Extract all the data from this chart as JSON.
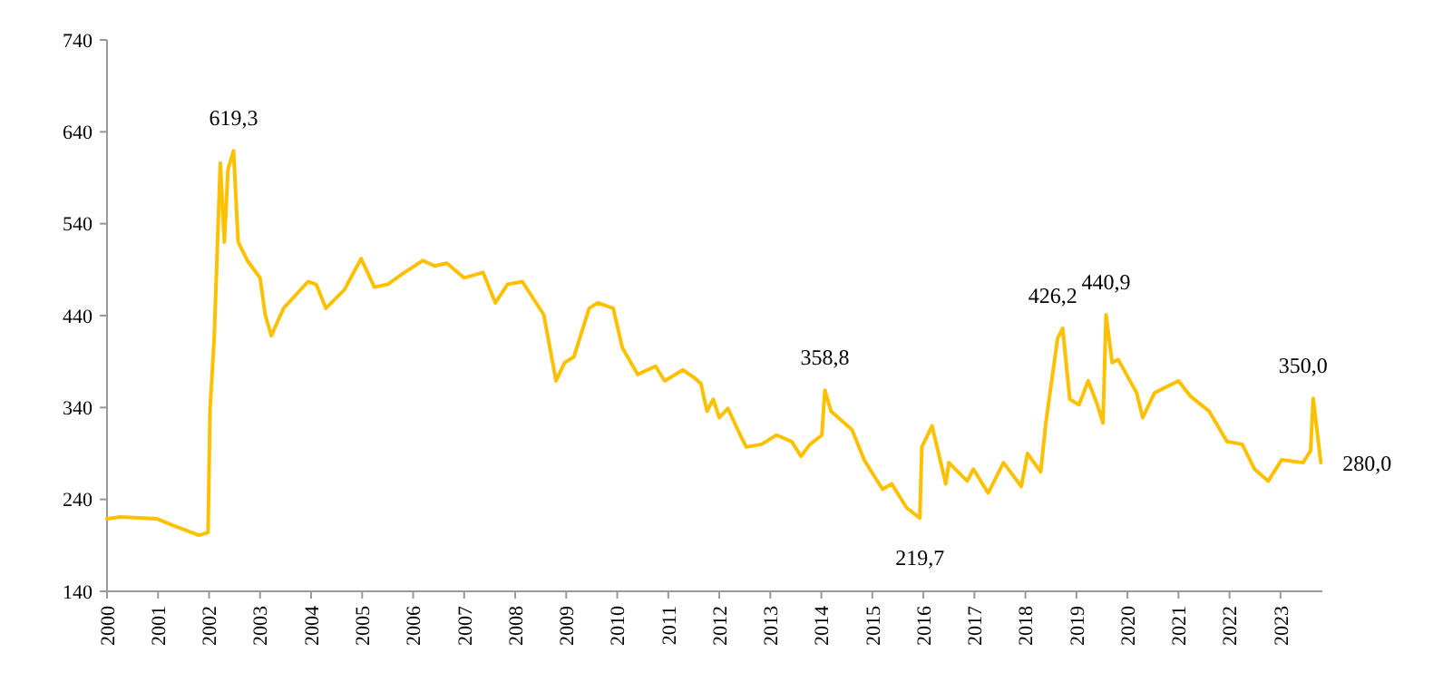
{
  "chart_data": {
    "type": "line",
    "x": [
      2000.0,
      2000.26,
      2000.97,
      2001.33,
      2001.8,
      2001.98,
      2002.02,
      2002.1,
      2002.22,
      2002.3,
      2002.37,
      2002.48,
      2002.57,
      2002.75,
      2003.0,
      2003.1,
      2003.22,
      2003.46,
      2003.94,
      2004.1,
      2004.29,
      2004.65,
      2004.98,
      2005.24,
      2005.5,
      2005.83,
      2006.19,
      2006.42,
      2006.66,
      2007.0,
      2007.37,
      2007.61,
      2007.85,
      2008.14,
      2008.56,
      2008.8,
      2008.97,
      2009.15,
      2009.45,
      2009.62,
      2009.92,
      2010.1,
      2010.4,
      2010.75,
      2010.93,
      2011.29,
      2011.52,
      2011.64,
      2011.76,
      2011.88,
      2012.0,
      2012.17,
      2012.41,
      2012.53,
      2012.83,
      2013.12,
      2013.42,
      2013.6,
      2013.78,
      2014.01,
      2014.07,
      2014.19,
      2014.6,
      2014.84,
      2015.2,
      2015.38,
      2015.67,
      2015.93,
      2015.97,
      2016.17,
      2016.44,
      2016.5,
      2016.86,
      2016.98,
      2017.27,
      2017.57,
      2017.92,
      2018.04,
      2018.3,
      2018.4,
      2018.63,
      2018.73,
      2018.87,
      2019.05,
      2019.23,
      2019.41,
      2019.52,
      2019.58,
      2019.7,
      2019.82,
      2020.18,
      2020.3,
      2020.53,
      2021.0,
      2021.24,
      2021.6,
      2021.95,
      2022.25,
      2022.49,
      2022.76,
      2023.02,
      2023.44,
      2023.59,
      2023.64,
      2023.79
    ],
    "series": [
      {
        "color": "#ffc000",
        "values": [
          219,
          221,
          219,
          211,
          201,
          204,
          339,
          415,
          606,
          520,
          599,
          619.3,
          520,
          500,
          481,
          441,
          418,
          448,
          477,
          474,
          448,
          468,
          502,
          471,
          474,
          487,
          500,
          494,
          497,
          481,
          487,
          454,
          474,
          477,
          441,
          369,
          389,
          395,
          448,
          454,
          448,
          405,
          376,
          385,
          369,
          381,
          372,
          366,
          336,
          349,
          329,
          339,
          310,
          297,
          300,
          310,
          303,
          287,
          300,
          310,
          358.8,
          336,
          316,
          283,
          251,
          257,
          231,
          219.7,
          297,
          320,
          257,
          280,
          260,
          273,
          247,
          280,
          254,
          290,
          270,
          323,
          415,
          426.2,
          349,
          343,
          369,
          343,
          323,
          440.9,
          389,
          392,
          356,
          329,
          356,
          369,
          352,
          336,
          303,
          300,
          273,
          260,
          283,
          280,
          293,
          350.0,
          280.0
        ]
      }
    ],
    "xlim": [
      2000,
      2023.82
    ],
    "xticks": [
      2000,
      2001,
      2002,
      2003,
      2004,
      2005,
      2006,
      2007,
      2008,
      2009,
      2010,
      2011,
      2012,
      2013,
      2014,
      2015,
      2016,
      2017,
      2018,
      2019,
      2020,
      2021,
      2022,
      2023
    ],
    "ylim": [
      140,
      740
    ],
    "yticks": [
      140,
      240,
      340,
      440,
      540,
      640,
      740
    ],
    "grid": false,
    "marker": "none",
    "line_style": "solid",
    "annotations": [
      {
        "text": "619,3",
        "x": 2002.48,
        "y": 619.3
      },
      {
        "text": "358,8",
        "x": 2014.07,
        "y": 358.8
      },
      {
        "text": "219,7",
        "x": 2015.93,
        "y": 219.7
      },
      {
        "text": "426,2",
        "x": 2018.73,
        "y": 426.2
      },
      {
        "text": "440,9",
        "x": 2019.58,
        "y": 440.9
      },
      {
        "text": "350,0",
        "x": 2023.64,
        "y": 350.0
      },
      {
        "text": "280,0",
        "x": 2023.79,
        "y": 280.0
      }
    ]
  }
}
